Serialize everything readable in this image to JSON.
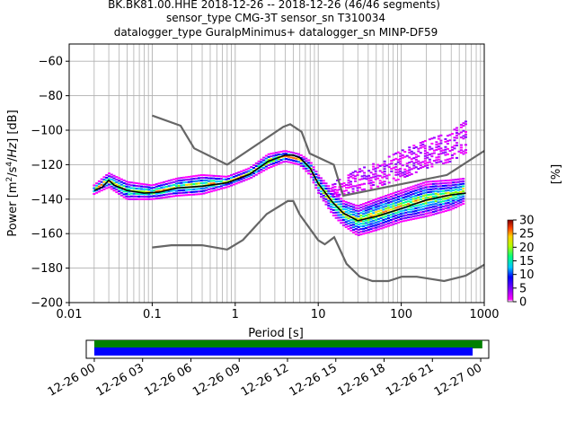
{
  "chart_data": [
    {
      "type": "heatmap",
      "title_lines": [
        "BK.BK81.00.HHE   2018-12-26 -- 2018-12-26  (46/46 segments)",
        "sensor_type CMG-3T sensor_sn T310034",
        "datalogger_type GuralpMinimus+ datalogger_sn MINP-DF59"
      ],
      "xlabel": "Period [s]",
      "ylabel": "Power [m2/s4/Hz] [dB]",
      "x_scale": "log",
      "xlim": [
        0.01,
        1000
      ],
      "ylim": [
        -200,
        -50
      ],
      "x_ticks": [
        "0.01",
        "0.1",
        "1",
        "10",
        "100",
        "1000"
      ],
      "y_ticks": [
        "−60",
        "−80",
        "−100",
        "−120",
        "−140",
        "−160",
        "−180",
        "−200"
      ],
      "y_tick_values": [
        -60,
        -80,
        -100,
        -120,
        -140,
        -160,
        -180,
        -200
      ],
      "grid": true,
      "colorbar": {
        "label": "[%]",
        "ticks": [
          "0",
          "5",
          "10",
          "15",
          "20",
          "25",
          "30"
        ],
        "tick_values": [
          0,
          5,
          10,
          15,
          20,
          25,
          30
        ],
        "range": [
          0,
          30
        ]
      },
      "series": [
        {
          "role": "NHNM",
          "color": "#666666",
          "x": [
            0.1,
            0.22,
            0.32,
            0.8,
            3.8,
            4.6,
            6.3,
            7.9,
            15.4,
            20,
            354.8,
            1000
          ],
          "y": [
            -91.5,
            -97.4,
            -110.5,
            -120,
            -98,
            -96.5,
            -101,
            -113.5,
            -120,
            -138,
            -126,
            -112
          ]
        },
        {
          "role": "NLNM",
          "color": "#666666",
          "x": [
            0.1,
            0.17,
            0.4,
            0.8,
            1.24,
            2.4,
            4.3,
            5,
            6,
            10,
            12,
            15.6,
            21.9,
            31.6,
            45,
            70,
            101,
            154,
            328,
            600,
            1000
          ],
          "y": [
            -168,
            -166.7,
            -166.7,
            -169.2,
            -163.7,
            -148.6,
            -141.1,
            -141.1,
            -149,
            -163.8,
            -166.2,
            -162.1,
            -177.5,
            -185,
            -187.5,
            -187.5,
            -185,
            -185,
            -187.5,
            -184.4,
            -178
          ]
        },
        {
          "role": "mode",
          "color": "#000000",
          "x": [
            0.02,
            0.025,
            0.03,
            0.035,
            0.05,
            0.08,
            0.12,
            0.2,
            0.4,
            0.8,
            1.5,
            2.5,
            4,
            5,
            6,
            8,
            10,
            15,
            20,
            30,
            50,
            100,
            200,
            400,
            600
          ],
          "y": [
            -135,
            -133,
            -129,
            -132,
            -135,
            -136.5,
            -136,
            -133.5,
            -132.5,
            -130.5,
            -125.5,
            -118,
            -114.5,
            -114.5,
            -116,
            -122,
            -131,
            -142,
            -148,
            -152.5,
            -150,
            -145.5,
            -140.5,
            -137.5,
            -136.5
          ]
        }
      ],
      "density_bands": [
        {
          "x": [
            0.02,
            0.03,
            0.05,
            0.1,
            0.2,
            0.4,
            0.8,
            1.5,
            2.5,
            4,
            6,
            8,
            10,
            15,
            20,
            30,
            50,
            100,
            200,
            400,
            600
          ],
          "y_low": [
            -137,
            -133,
            -140,
            -140,
            -138,
            -137,
            -133,
            -128,
            -122,
            -118,
            -120,
            -126,
            -136,
            -149,
            -155,
            -161,
            -158,
            -153,
            -150,
            -146,
            -142
          ],
          "y_high": [
            -132,
            -125,
            -130,
            -132,
            -128,
            -126,
            -127,
            -122,
            -114,
            -112,
            -114,
            -118,
            -126,
            -135,
            -141,
            -144,
            -140,
            -135,
            -130,
            -129,
            -128
          ]
        },
        {
          "x": [
            15,
            20,
            30,
            50,
            100,
            200,
            400,
            600
          ],
          "y_low": [
            -138,
            -137,
            -135,
            -133,
            -128,
            -122,
            -118,
            -113
          ],
          "y_high": [
            -130,
            -128,
            -123,
            -119,
            -112,
            -106,
            -101,
            -95
          ]
        }
      ]
    },
    {
      "type": "bar",
      "role": "data availability",
      "x_ticks": [
        "12-26 00",
        "12-26 03",
        "12-26 06",
        "12-26 09",
        "12-26 12",
        "12-26 15",
        "12-26 18",
        "12-26 21",
        "12-27 00"
      ],
      "xlim_hours": [
        -0.5,
        24.5
      ],
      "bars": [
        {
          "color": "#008000",
          "start_hour": 0,
          "end_hour": 24.1
        },
        {
          "color": "#0000ff",
          "start_hour": 0,
          "end_hour": 23.5
        }
      ]
    }
  ]
}
